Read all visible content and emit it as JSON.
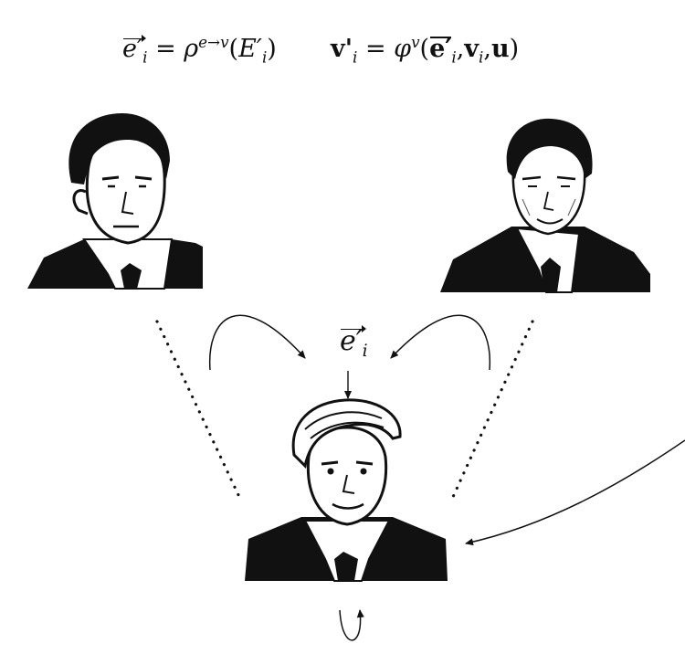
{
  "formulas": {
    "edge_update": {
      "lhs_symbol": "e′",
      "lhs_subscript": "i",
      "equals": "=",
      "function_symbol": "ρ",
      "function_superscript": "e→v",
      "arg_open": "(",
      "arg_symbol": "E′",
      "arg_subscript": "i",
      "arg_close": ")"
    },
    "node_update": {
      "lhs_symbol": "v",
      "lhs_prime": "'",
      "lhs_subscript": "i",
      "equals": "=",
      "function_symbol": "φ",
      "function_superscript": "v",
      "arg_open": "(",
      "arg_1_symbol": "e′",
      "arg_1_subscript": "i",
      "comma_1": ",",
      "arg_2_symbol": "v",
      "arg_2_subscript": "i",
      "comma_2": ",",
      "arg_3_symbol": "u",
      "arg_close": ")"
    }
  },
  "aggregate_label": {
    "symbol": "e′",
    "subscript": "i"
  },
  "colors": {
    "ink": "#111111",
    "background": "#ffffff"
  }
}
